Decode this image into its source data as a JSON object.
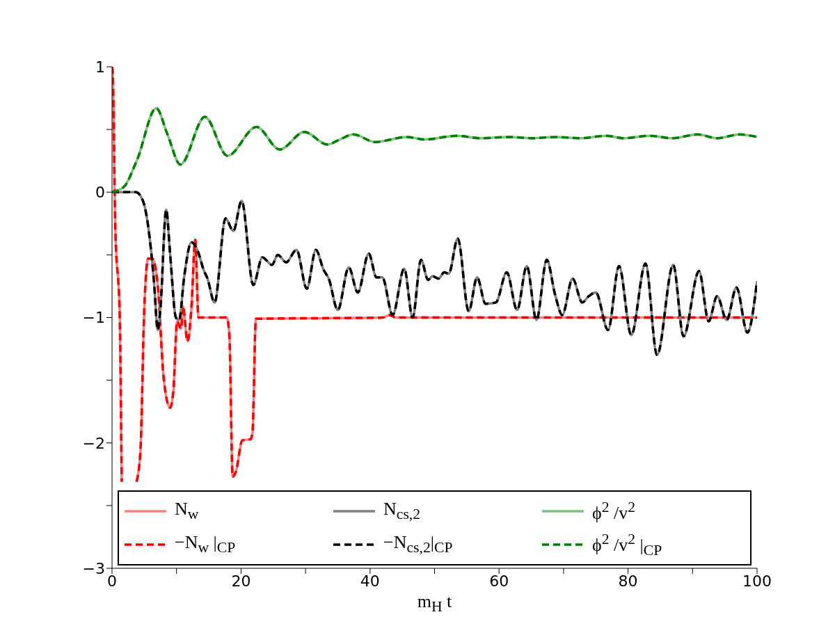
{
  "chart_data": {
    "type": "line",
    "xlabel": "m$_{H}$ t",
    "xlim": [
      0,
      100
    ],
    "xticks": [
      0,
      {
        "value": 10,
        "label": null
      },
      20,
      {
        "value": 30,
        "label": null
      },
      40,
      {
        "value": 50,
        "label": null
      },
      60,
      {
        "value": 70,
        "label": null
      },
      80,
      {
        "value": 90,
        "label": null
      },
      100
    ],
    "ylim": [
      -3,
      1
    ],
    "yticks": [
      {
        "value": -3,
        "label": "−3"
      },
      {
        "value": -2.5,
        "label": null
      },
      {
        "value": -2,
        "label": "−2"
      },
      {
        "value": -1.5,
        "label": null
      },
      {
        "value": -1,
        "label": "−1"
      },
      {
        "value": -0.5,
        "label": null
      },
      0,
      {
        "value": 0.5,
        "label": null
      },
      1
    ],
    "grid": false,
    "legend": "bottom",
    "marker": "none",
    "series": [
      {
        "name": "N$_{w}$",
        "color": "#ff8080",
        "line_style": "solid",
        "x": [
          0,
          0.1,
          0.5,
          1.2,
          1.5,
          2.5,
          3.8,
          4.4,
          5.0,
          5.6,
          6.25,
          7.1,
          8.0,
          9.0,
          9.5,
          10.1,
          10.7,
          11.0,
          11.7,
          12.3,
          12.9,
          13.4,
          17.8,
          18.2,
          18.7,
          19.2,
          20.2,
          21.5,
          21.8,
          22.3,
          42,
          43,
          44,
          100
        ],
        "values": [
          1,
          0.96,
          -0.27,
          -1.0,
          -2.31,
          null,
          -2.31,
          -2.07,
          -0.93,
          -0.53,
          -0.53,
          -0.75,
          -1.48,
          -1.72,
          -1.59,
          -1.03,
          -1.09,
          -0.91,
          -1.19,
          -0.93,
          -0.38,
          -1.0,
          -1.0,
          -1.15,
          -2.27,
          -2.23,
          -1.98,
          -1.97,
          -1.9,
          -1.01,
          -1.0,
          -0.98,
          -1.0,
          -1.0
        ]
      },
      {
        "name": "−N$_{w}$ |$_{CP}$",
        "color": "#ff0000",
        "line_style": "dashed",
        "x": [
          0,
          0.1,
          0.5,
          1.2,
          1.5,
          2.5,
          3.8,
          4.4,
          5.0,
          5.6,
          6.25,
          7.1,
          8.0,
          9.0,
          9.5,
          10.1,
          10.7,
          11.0,
          11.7,
          12.3,
          12.9,
          13.4,
          17.8,
          18.2,
          18.7,
          19.2,
          20.2,
          21.5,
          21.8,
          22.3,
          42,
          43,
          44,
          100
        ],
        "values": [
          1,
          0.96,
          -0.27,
          -1.0,
          -2.31,
          null,
          -2.31,
          -2.07,
          -0.93,
          -0.53,
          -0.53,
          -0.75,
          -1.48,
          -1.72,
          -1.59,
          -1.03,
          -1.09,
          -0.91,
          -1.19,
          -0.93,
          -0.38,
          -1.0,
          -1.0,
          -1.15,
          -2.27,
          -2.23,
          -1.98,
          -1.97,
          -1.9,
          -1.01,
          -1.0,
          -0.98,
          -1.0,
          -1.0
        ]
      },
      {
        "name": "N$_{cs,2}$",
        "color": "#808080",
        "line_style": "solid",
        "x": [
          0,
          3.7,
          4.8,
          5.6,
          6.5,
          7.1,
          7.5,
          8.4,
          9.0,
          9.9,
          10.4,
          11.2,
          12.3,
          13.3,
          14.2,
          14.8,
          15.9,
          17.6,
          18.8,
          20.1,
          21.9,
          23.3,
          24.8,
          25.7,
          27.0,
          28.6,
          30.2,
          31.6,
          32.8,
          33.6,
          35.0,
          36.7,
          38.1,
          39.8,
          41.0,
          41.9,
          43.5,
          45.3,
          46.6,
          47.9,
          49.0,
          49.7,
          50.6,
          51.5,
          52.2,
          53.6,
          55.3,
          56.6,
          57.9,
          59.5,
          61.2,
          62.8,
          64.3,
          65.8,
          67.4,
          68.7,
          69.8,
          71.4,
          72.9,
          73.9,
          75.0,
          76.9,
          78.6,
          80.5,
          82.7,
          84.5,
          87.0,
          88.6,
          91.0,
          92.5,
          93.8,
          95.3,
          96.8,
          98.5,
          100
        ],
        "values": [
          0,
          0,
          -0.07,
          -0.27,
          -0.71,
          -1.1,
          -0.93,
          -0.14,
          -0.49,
          -1.0,
          -1.02,
          -0.67,
          -0.4,
          -0.47,
          -0.62,
          -0.69,
          -0.88,
          -0.21,
          -0.31,
          -0.07,
          -0.74,
          -0.52,
          -0.58,
          -0.5,
          -0.56,
          -0.46,
          -0.77,
          -0.46,
          -0.62,
          -0.69,
          -0.94,
          -0.6,
          -0.8,
          -0.49,
          -0.68,
          -0.68,
          -0.98,
          -0.61,
          -1.0,
          -0.54,
          -0.7,
          -0.67,
          -0.69,
          -0.64,
          -0.65,
          -0.37,
          -0.95,
          -0.68,
          -0.89,
          -0.88,
          -0.64,
          -0.94,
          -0.59,
          -1.02,
          -0.54,
          -0.82,
          -0.98,
          -0.69,
          -0.88,
          -0.83,
          -0.8,
          -1.1,
          -0.59,
          -1.14,
          -0.57,
          -1.3,
          -0.58,
          -1.15,
          -0.63,
          -1.03,
          -0.83,
          -1.02,
          -0.76,
          -1.12,
          -0.71
        ]
      },
      {
        "name": "−N$_{cs,2}$|$_{CP}$",
        "color": "#000000",
        "line_style": "dashed",
        "x": [
          0,
          3.7,
          4.8,
          5.6,
          6.5,
          7.1,
          7.5,
          8.4,
          9.0,
          9.9,
          10.4,
          11.2,
          12.3,
          13.3,
          14.2,
          14.8,
          15.9,
          17.6,
          18.8,
          20.1,
          21.9,
          23.3,
          24.8,
          25.7,
          27.0,
          28.6,
          30.2,
          31.6,
          32.8,
          33.6,
          35.0,
          36.7,
          38.1,
          39.8,
          41.0,
          41.9,
          43.5,
          45.3,
          46.6,
          47.9,
          49.0,
          49.7,
          50.6,
          51.5,
          52.2,
          53.6,
          55.3,
          56.6,
          57.9,
          59.5,
          61.2,
          62.8,
          64.3,
          65.8,
          67.4,
          68.7,
          69.8,
          71.4,
          72.9,
          73.9,
          75.0,
          76.9,
          78.6,
          80.5,
          82.7,
          84.5,
          87.0,
          88.6,
          91.0,
          92.5,
          93.8,
          95.3,
          96.8,
          98.5,
          100
        ],
        "values": [
          0,
          0,
          -0.07,
          -0.27,
          -0.71,
          -1.1,
          -0.93,
          -0.14,
          -0.49,
          -1.0,
          -1.02,
          -0.67,
          -0.4,
          -0.47,
          -0.62,
          -0.69,
          -0.88,
          -0.21,
          -0.31,
          -0.07,
          -0.74,
          -0.52,
          -0.58,
          -0.5,
          -0.56,
          -0.46,
          -0.77,
          -0.46,
          -0.62,
          -0.69,
          -0.94,
          -0.6,
          -0.8,
          -0.49,
          -0.68,
          -0.68,
          -0.98,
          -0.61,
          -1.0,
          -0.54,
          -0.7,
          -0.67,
          -0.69,
          -0.64,
          -0.65,
          -0.37,
          -0.95,
          -0.68,
          -0.89,
          -0.88,
          -0.64,
          -0.94,
          -0.59,
          -1.02,
          -0.54,
          -0.82,
          -0.98,
          -0.69,
          -0.88,
          -0.83,
          -0.8,
          -1.1,
          -0.59,
          -1.14,
          -0.57,
          -1.3,
          -0.58,
          -1.15,
          -0.63,
          -1.03,
          -0.83,
          -1.02,
          -0.76,
          -1.12,
          -0.71
        ]
      },
      {
        "name": "ϕ$^{2}$ /v$^{2}$",
        "color": "#80c080",
        "line_style": "solid",
        "x": [
          0,
          1.8,
          3.9,
          6.85,
          8.6,
          10.6,
          14.4,
          17.9,
          22.4,
          26.0,
          29.8,
          33.4,
          35.3,
          37.4,
          40.8,
          45.7,
          48.5,
          53.4,
          57.2,
          61.5,
          65.1,
          68.7,
          72.6,
          76.6,
          79.3,
          83.3,
          86.8,
          90.8,
          93.8,
          97.3,
          100
        ],
        "values": [
          0,
          0.04,
          0.26,
          0.67,
          0.46,
          0.22,
          0.6,
          0.29,
          0.52,
          0.34,
          0.48,
          0.38,
          0.42,
          0.46,
          0.4,
          0.44,
          0.42,
          0.45,
          0.43,
          0.44,
          0.43,
          0.44,
          0.43,
          0.45,
          0.43,
          0.45,
          0.43,
          0.46,
          0.43,
          0.46,
          0.44
        ]
      },
      {
        "name": "ϕ$^{2}$ /v$^{2}$ |$_{CP}$",
        "color": "#008000",
        "line_style": "dashed",
        "x": [
          0,
          1.8,
          3.9,
          6.85,
          8.6,
          10.6,
          14.4,
          17.9,
          22.4,
          26.0,
          29.8,
          33.4,
          35.3,
          37.4,
          40.8,
          45.7,
          48.5,
          53.4,
          57.2,
          61.5,
          65.1,
          68.7,
          72.6,
          76.6,
          79.3,
          83.3,
          86.8,
          90.8,
          93.8,
          97.3,
          100
        ],
        "values": [
          0,
          0.04,
          0.26,
          0.67,
          0.46,
          0.22,
          0.6,
          0.29,
          0.52,
          0.34,
          0.48,
          0.38,
          0.42,
          0.46,
          0.4,
          0.44,
          0.42,
          0.45,
          0.43,
          0.44,
          0.43,
          0.44,
          0.43,
          0.45,
          0.43,
          0.45,
          0.43,
          0.46,
          0.43,
          0.46,
          0.44
        ]
      }
    ]
  }
}
